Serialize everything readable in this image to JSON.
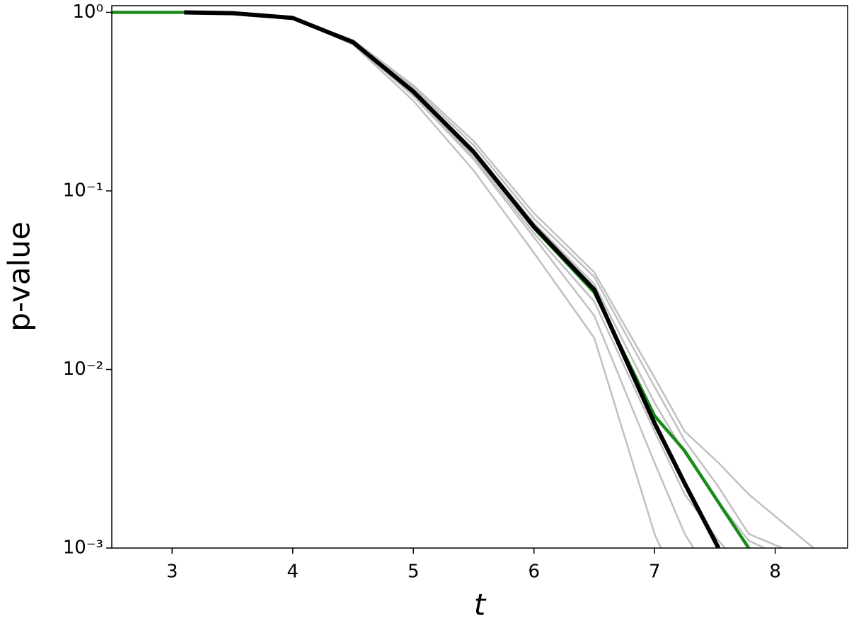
{
  "chart_data": {
    "type": "line",
    "x_label": "t",
    "y_label": "p-value",
    "x": [
      2.5,
      3.1,
      3.5,
      4,
      4.5,
      5,
      5.5,
      6,
      6.5,
      7,
      7.25,
      7.53,
      7.78,
      8.4
    ],
    "series": [
      {
        "color": "#c0c0c0",
        "values": [
          null,
          null,
          null,
          0.93,
          0.66,
          0.32,
          0.13,
          0.045,
          0.015,
          0.0012,
          0.0005,
          null,
          null,
          null
        ]
      },
      {
        "color": "#c0c0c0",
        "values": [
          null,
          null,
          null,
          0.93,
          0.67,
          0.34,
          0.15,
          0.055,
          0.02,
          0.003,
          0.0012,
          0.0006,
          null,
          null
        ]
      },
      {
        "color": "#c0c0c0",
        "values": [
          null,
          null,
          null,
          0.93,
          0.69,
          0.38,
          0.18,
          0.07,
          0.033,
          0.008,
          0.004,
          0.0022,
          0.0012,
          0.0008
        ]
      },
      {
        "color": "#c0c0c0",
        "values": [
          null,
          null,
          null,
          0.93,
          0.7,
          0.39,
          0.19,
          0.075,
          0.035,
          0.009,
          0.0045,
          0.003,
          0.002,
          0.0009
        ]
      },
      {
        "color": "#c0c0c0",
        "values": [
          null,
          null,
          null,
          0.92,
          0.67,
          0.35,
          0.155,
          0.058,
          0.024,
          0.0045,
          0.002,
          0.0011,
          0.0007,
          null
        ]
      },
      {
        "color": "#c0c0c0",
        "values": [
          null,
          null,
          null,
          0.93,
          0.68,
          0.37,
          0.17,
          0.066,
          0.03,
          0.0065,
          0.0034,
          0.0018,
          0.0011,
          0.0007
        ]
      },
      {
        "color": "#1a8a1a",
        "values": [
          1,
          1,
          0.99,
          0.93,
          0.68,
          0.36,
          0.165,
          0.062,
          0.027,
          0.0055,
          0.0035,
          0.0018,
          0.001,
          null
        ]
      },
      {
        "color": "#000000",
        "values": [
          null,
          1,
          0.99,
          0.93,
          0.68,
          0.36,
          0.165,
          0.063,
          0.028,
          0.005,
          0.0023,
          0.001,
          null,
          null
        ]
      }
    ],
    "xlim": [
      2.5,
      8.6
    ],
    "ylim": [
      0.001,
      1.09
    ],
    "log_y": true,
    "grid": false,
    "xticks": [
      3,
      4,
      5,
      6,
      7,
      8
    ],
    "yticks": [
      {
        "value": 0.001,
        "label": "10⁻³"
      },
      {
        "value": 0.01,
        "label": "10⁻²"
      },
      {
        "value": 0.1,
        "label": "10⁻¹"
      },
      {
        "value": 1,
        "label": "10⁰"
      }
    ]
  }
}
